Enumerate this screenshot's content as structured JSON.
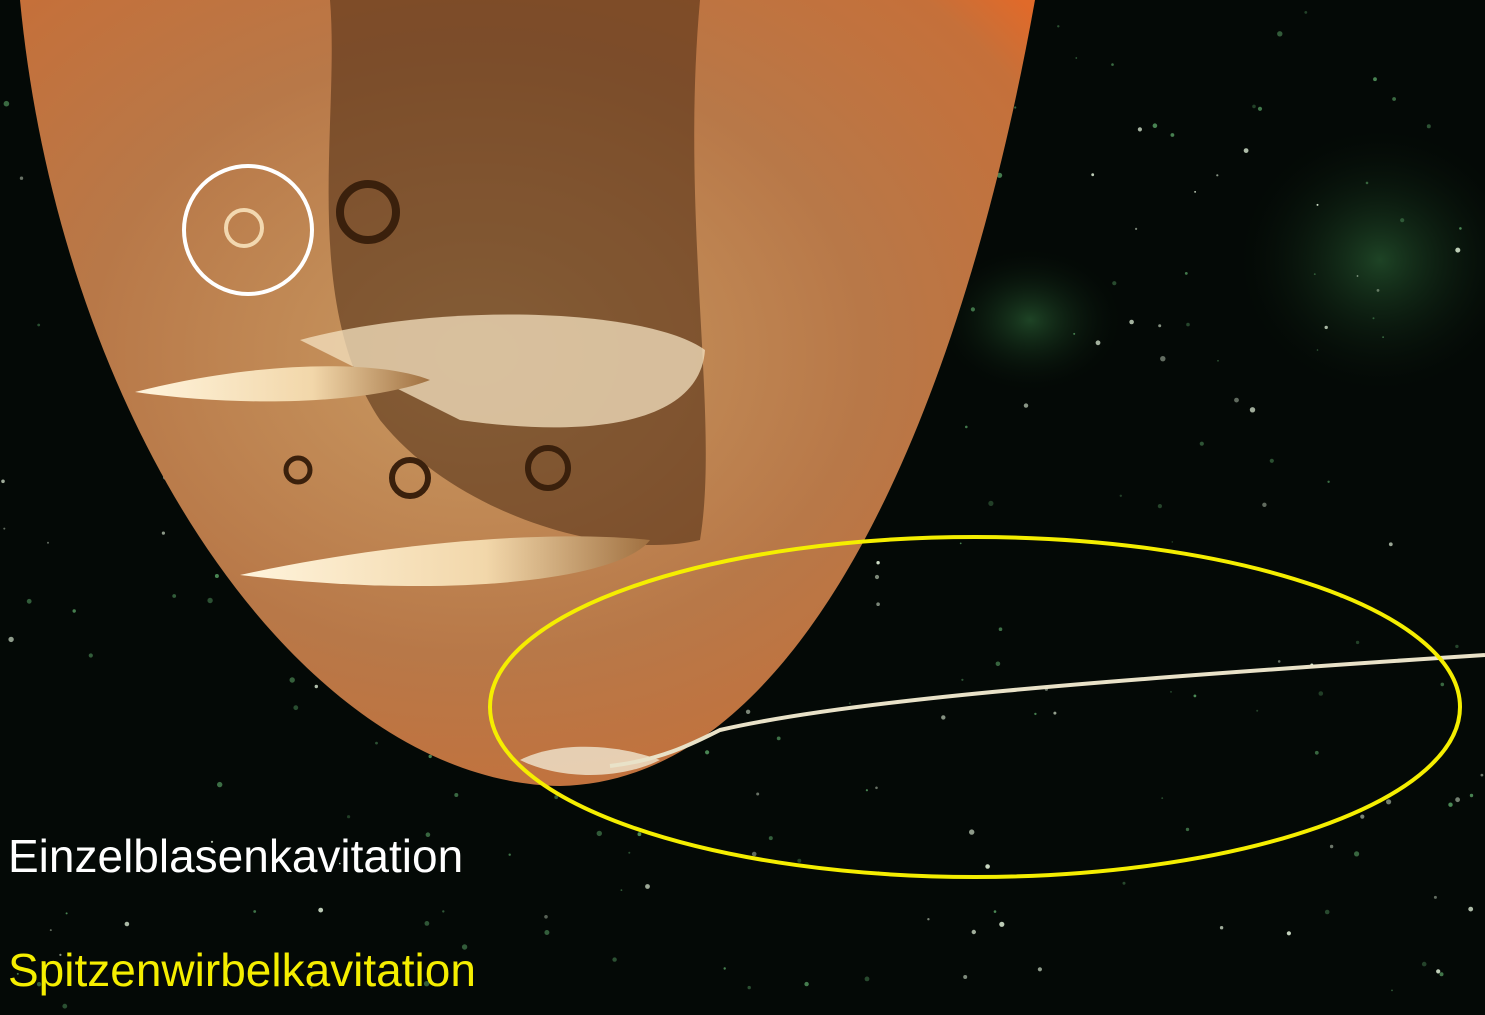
{
  "annotations": [
    {
      "label": "Einzelblasenkavitation"
    },
    {
      "label": "Spitzenwirbelkavitation"
    }
  ]
}
